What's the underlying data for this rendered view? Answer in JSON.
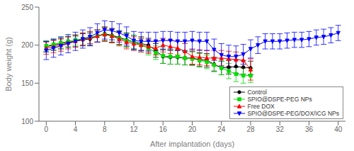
{
  "chart_data": {
    "type": "line",
    "xlabel": "After implantation (days)",
    "ylabel": "Body weight (g)",
    "xlim": [
      -1,
      41
    ],
    "ylim": [
      100,
      250
    ],
    "xticks": [
      0,
      4,
      8,
      12,
      16,
      20,
      24,
      28,
      32,
      36,
      40
    ],
    "yticks": [
      100,
      150,
      200,
      250
    ],
    "grid": false,
    "legend": "lower right",
    "series": [
      {
        "name": "Control",
        "color": "black",
        "marker": "circle",
        "x": [
          0,
          1,
          2,
          3,
          4,
          5,
          6,
          7,
          8,
          9,
          10,
          11,
          12,
          13,
          14,
          15,
          16,
          17,
          18,
          19,
          20,
          21,
          22,
          23,
          24,
          25,
          26,
          27,
          28
        ],
        "values": [
          198,
          200,
          202,
          204,
          205,
          207,
          208,
          212,
          215,
          213,
          210,
          207,
          204,
          202,
          200,
          193,
          185,
          184,
          184,
          183,
          183,
          181,
          180,
          175,
          170,
          171,
          172,
          171,
          170
        ],
        "yerr": [
          7,
          7,
          7,
          7,
          7,
          8,
          8,
          8,
          9,
          9,
          9,
          9,
          9,
          9,
          9,
          9,
          9,
          9,
          9,
          9,
          9,
          9,
          9,
          9,
          9,
          9,
          9,
          9,
          9
        ]
      },
      {
        "name": "SPIO@DSPE-PEG NPs",
        "color": "#00dd00",
        "marker": "square",
        "x": [
          0,
          1,
          2,
          3,
          4,
          5,
          6,
          7,
          8,
          9,
          10,
          11,
          12,
          13,
          14,
          15,
          16,
          17,
          18,
          19,
          20,
          21,
          22,
          23,
          24,
          25,
          26,
          27,
          28
        ],
        "values": [
          199,
          201,
          203,
          205,
          207,
          208,
          210,
          212,
          214,
          212,
          209,
          206,
          204,
          200,
          196,
          190,
          186,
          185,
          185,
          183,
          182,
          180,
          178,
          174,
          170,
          166,
          162,
          160,
          160
        ],
        "yerr": [
          7,
          7,
          7,
          7,
          7,
          8,
          8,
          8,
          9,
          9,
          9,
          9,
          9,
          9,
          9,
          9,
          10,
          10,
          10,
          9,
          9,
          9,
          9,
          9,
          9,
          10,
          10,
          10,
          9
        ]
      },
      {
        "name": "Free DOX",
        "color": "red",
        "marker": "triangle-up",
        "x": [
          0,
          1,
          2,
          3,
          4,
          5,
          6,
          7,
          8,
          9,
          10,
          11,
          12,
          13,
          14,
          15,
          16,
          17,
          18,
          19,
          20,
          21,
          22,
          23,
          24,
          25,
          26,
          27,
          28
        ],
        "values": [
          196,
          198,
          200,
          203,
          205,
          208,
          210,
          212,
          214,
          212,
          208,
          204,
          202,
          200,
          198,
          196,
          200,
          198,
          196,
          192,
          185,
          184,
          183,
          183,
          183,
          182,
          181,
          180,
          168
        ],
        "yerr": [
          8,
          8,
          8,
          8,
          8,
          8,
          8,
          8,
          9,
          9,
          9,
          9,
          9,
          9,
          9,
          9,
          9,
          9,
          9,
          10,
          10,
          10,
          10,
          10,
          10,
          10,
          10,
          10,
          14
        ]
      },
      {
        "name": "SPIO@DSPE-PEG/DOX/ICG NPs",
        "color": "blue",
        "marker": "triangle-down",
        "x": [
          0,
          1,
          2,
          3,
          4,
          5,
          6,
          7,
          8,
          9,
          10,
          11,
          12,
          13,
          14,
          15,
          16,
          17,
          18,
          19,
          20,
          21,
          22,
          23,
          24,
          25,
          26,
          27,
          28,
          29,
          30,
          31,
          32,
          33,
          34,
          35,
          36,
          37,
          38,
          39,
          40
        ],
        "values": [
          193,
          196,
          199,
          202,
          205,
          208,
          211,
          216,
          220,
          219,
          216,
          212,
          206,
          205,
          205,
          205,
          206,
          206,
          205,
          205,
          206,
          205,
          205,
          194,
          187,
          185,
          185,
          188,
          195,
          200,
          205,
          205,
          205,
          206,
          207,
          207,
          208,
          210,
          211,
          213,
          216
        ],
        "yerr": [
          12,
          12,
          12,
          12,
          12,
          12,
          12,
          12,
          12,
          12,
          12,
          12,
          12,
          12,
          12,
          12,
          12,
          12,
          12,
          12,
          12,
          12,
          12,
          14,
          15,
          15,
          14,
          13,
          12,
          11,
          10,
          10,
          10,
          10,
          10,
          10,
          10,
          10,
          10,
          10,
          10
        ]
      }
    ]
  }
}
